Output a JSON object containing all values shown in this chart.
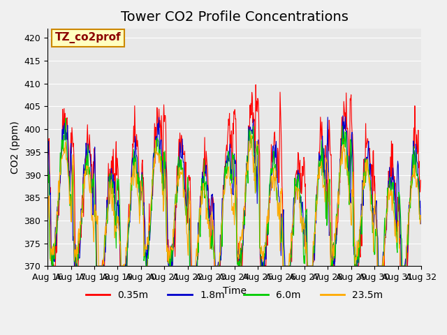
{
  "title": "Tower CO2 Profile Concentrations",
  "xlabel": "Time",
  "ylabel": "CO2 (ppm)",
  "annotation": "TZ_co2prof",
  "ylim": [
    370,
    422
  ],
  "yticks": [
    370,
    375,
    380,
    385,
    390,
    395,
    400,
    405,
    410,
    415,
    420
  ],
  "series_labels": [
    "0.35m",
    "1.8m",
    "6.0m",
    "23.5m"
  ],
  "series_colors": [
    "#ff0000",
    "#0000cc",
    "#00cc00",
    "#ffaa00"
  ],
  "background_color": "#e8e8e8",
  "n_days": 16,
  "start_day": 16,
  "title_fontsize": 14,
  "label_fontsize": 10,
  "tick_fontsize": 9,
  "legend_fontsize": 10,
  "annotation_fontsize": 11
}
